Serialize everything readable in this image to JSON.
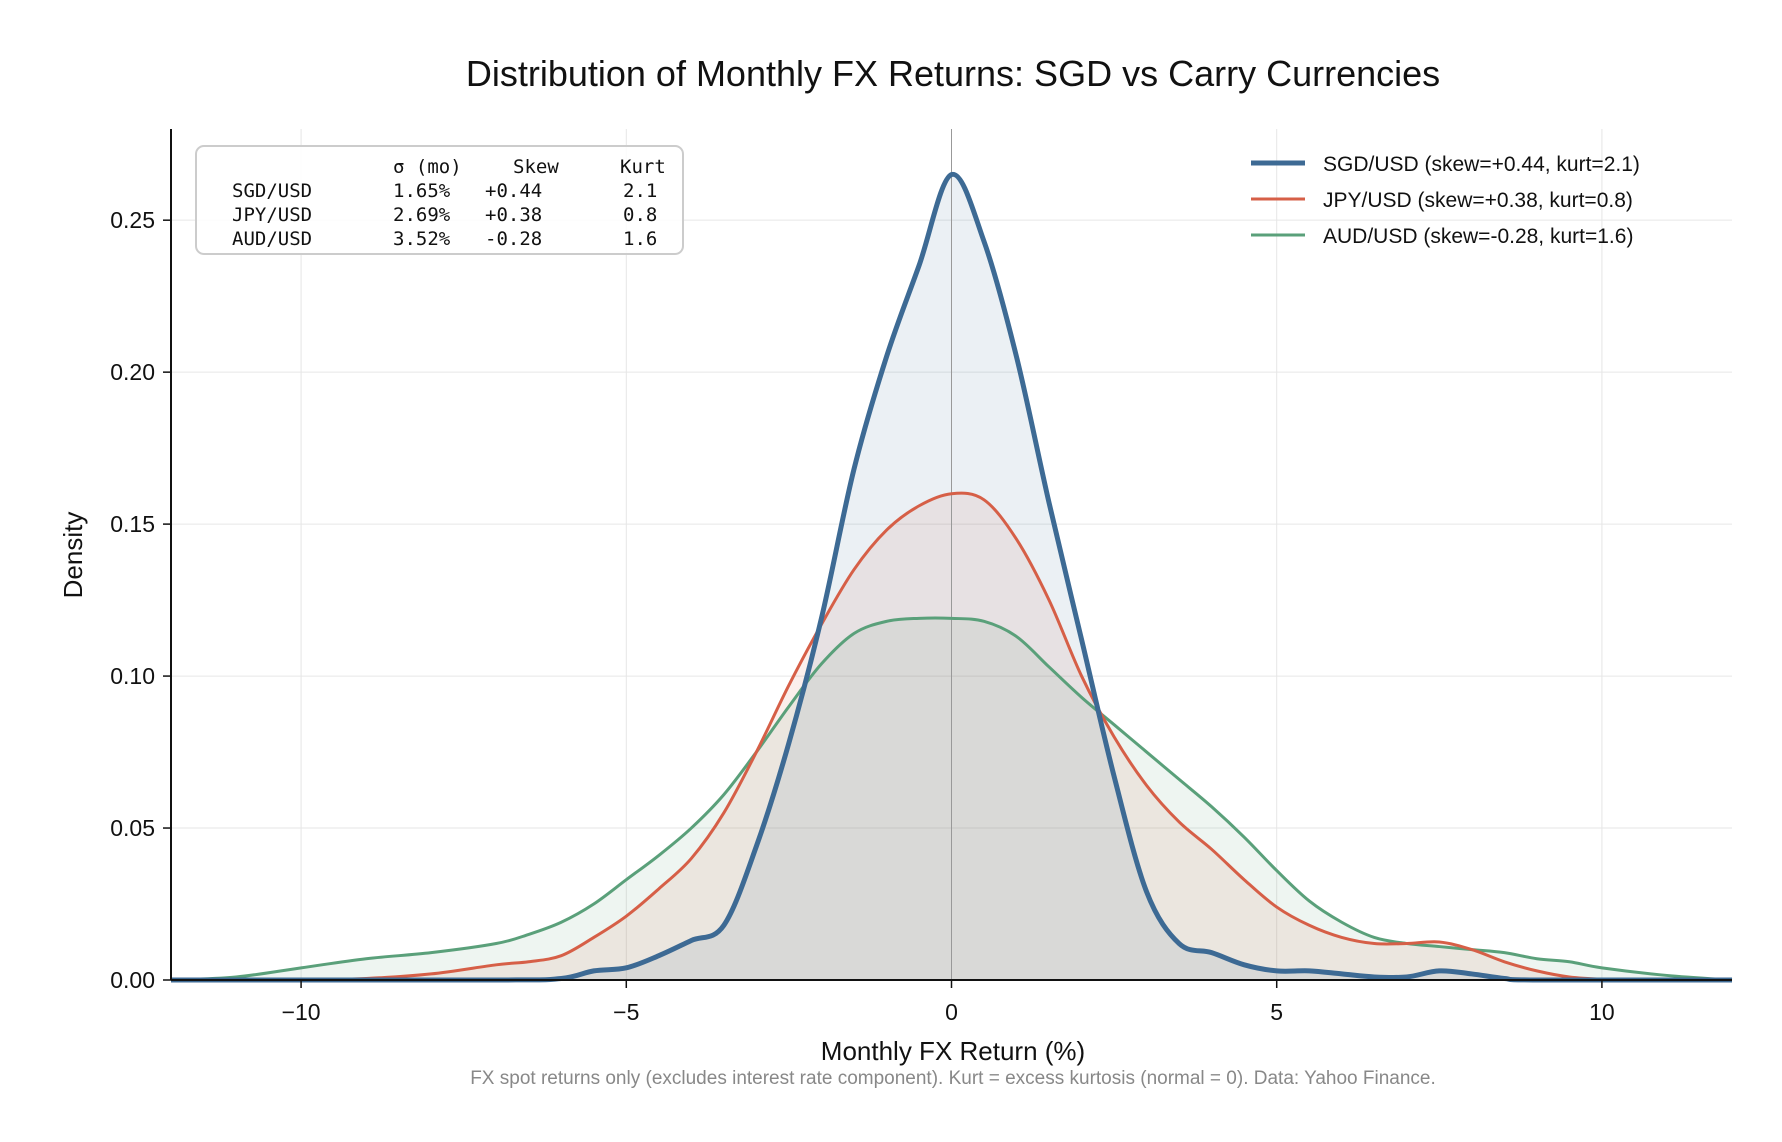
{
  "chart_data": {
    "type": "line",
    "title": "Distribution of Monthly FX Returns: SGD vs Carry Currencies",
    "xlabel": "Monthly FX Return (%)",
    "ylabel": "Density",
    "xlim": [
      -12,
      12
    ],
    "ylim": [
      0,
      0.28
    ],
    "xticks": [
      -10,
      -5,
      0,
      5,
      10
    ],
    "xtick_labels": [
      "−10",
      "−5",
      "0",
      "5",
      "10"
    ],
    "yticks": [
      0,
      0.05,
      0.1,
      0.15,
      0.2,
      0.25
    ],
    "ytick_labels": [
      "0.00",
      "0.05",
      "0.10",
      "0.15",
      "0.20",
      "0.25"
    ],
    "grid": true,
    "vertical_reference_line": 0,
    "legend_position": "top-right",
    "footnote": "FX spot returns only (excludes interest rate component). Kurt = excess kurtosis (normal = 0). Data: Yahoo Finance.",
    "stats_table": {
      "headers": [
        "",
        "σ (mo)",
        "Skew",
        "Kurt"
      ],
      "rows": [
        [
          "SGD/USD",
          "1.65%",
          "+0.44",
          "2.1"
        ],
        [
          "JPY/USD",
          "2.69%",
          "+0.38",
          "0.8"
        ],
        [
          "AUD/USD",
          "3.52%",
          "-0.28",
          "1.6"
        ]
      ]
    },
    "series": [
      {
        "name": "SGD/USD  (skew=+0.44, kurt=2.1)",
        "color": "#3d6a94",
        "fill": "#3d6a94",
        "points": [
          [
            -12,
            0
          ],
          [
            -7,
            0
          ],
          [
            -6,
            0.0005
          ],
          [
            -5.5,
            0.003
          ],
          [
            -5,
            0.004
          ],
          [
            -4.5,
            0.008
          ],
          [
            -4,
            0.013
          ],
          [
            -3.5,
            0.018
          ],
          [
            -3,
            0.044
          ],
          [
            -2.5,
            0.078
          ],
          [
            -2,
            0.119
          ],
          [
            -1.5,
            0.168
          ],
          [
            -1,
            0.205
          ],
          [
            -0.5,
            0.235
          ],
          [
            0,
            0.265
          ],
          [
            0.5,
            0.243
          ],
          [
            1,
            0.205
          ],
          [
            1.5,
            0.157
          ],
          [
            2,
            0.112
          ],
          [
            2.5,
            0.067
          ],
          [
            3,
            0.029
          ],
          [
            3.5,
            0.012
          ],
          [
            4,
            0.009
          ],
          [
            4.5,
            0.005
          ],
          [
            5,
            0.003
          ],
          [
            5.5,
            0.003
          ],
          [
            6,
            0.002
          ],
          [
            6.5,
            0.001
          ],
          [
            7,
            0.001
          ],
          [
            7.5,
            0.003
          ],
          [
            8,
            0.002
          ],
          [
            8.5,
            0.0005
          ],
          [
            9,
            0
          ],
          [
            12,
            0
          ]
        ]
      },
      {
        "name": "JPY/USD  (skew=+0.38, kurt=0.8)",
        "color": "#d65f47",
        "fill": "#d65f47",
        "points": [
          [
            -12,
            0
          ],
          [
            -10,
            0
          ],
          [
            -9,
            0.0005
          ],
          [
            -8,
            0.002
          ],
          [
            -7,
            0.005
          ],
          [
            -6.5,
            0.006
          ],
          [
            -6,
            0.008
          ],
          [
            -5.5,
            0.014
          ],
          [
            -5,
            0.021
          ],
          [
            -4.5,
            0.03
          ],
          [
            -4,
            0.04
          ],
          [
            -3.5,
            0.055
          ],
          [
            -3,
            0.075
          ],
          [
            -2.5,
            0.097
          ],
          [
            -2,
            0.117
          ],
          [
            -1.5,
            0.135
          ],
          [
            -1,
            0.148
          ],
          [
            -0.5,
            0.156
          ],
          [
            0,
            0.16
          ],
          [
            0.5,
            0.158
          ],
          [
            1,
            0.145
          ],
          [
            1.5,
            0.125
          ],
          [
            2,
            0.1
          ],
          [
            2.5,
            0.08
          ],
          [
            3,
            0.064
          ],
          [
            3.5,
            0.052
          ],
          [
            4,
            0.043
          ],
          [
            4.5,
            0.033
          ],
          [
            5,
            0.024
          ],
          [
            5.5,
            0.018
          ],
          [
            6,
            0.014
          ],
          [
            6.5,
            0.012
          ],
          [
            7,
            0.012
          ],
          [
            7.5,
            0.0125
          ],
          [
            8,
            0.01
          ],
          [
            8.5,
            0.006
          ],
          [
            9,
            0.003
          ],
          [
            9.5,
            0.001
          ],
          [
            10,
            0.0003
          ],
          [
            11,
            0
          ],
          [
            12,
            0
          ]
        ]
      },
      {
        "name": "AUD/USD  (skew=-0.28, kurt=1.6)",
        "color": "#5aa07a",
        "fill": "#5aa07a",
        "points": [
          [
            -12,
            0
          ],
          [
            -11,
            0.001
          ],
          [
            -10,
            0.004
          ],
          [
            -9,
            0.007
          ],
          [
            -8,
            0.009
          ],
          [
            -7,
            0.012
          ],
          [
            -6.5,
            0.015
          ],
          [
            -6,
            0.019
          ],
          [
            -5.5,
            0.025
          ],
          [
            -5,
            0.033
          ],
          [
            -4.5,
            0.041
          ],
          [
            -4,
            0.05
          ],
          [
            -3.5,
            0.061
          ],
          [
            -3,
            0.075
          ],
          [
            -2.5,
            0.09
          ],
          [
            -2,
            0.104
          ],
          [
            -1.5,
            0.114
          ],
          [
            -1,
            0.118
          ],
          [
            -0.5,
            0.119
          ],
          [
            0,
            0.119
          ],
          [
            0.5,
            0.118
          ],
          [
            1,
            0.113
          ],
          [
            1.5,
            0.103
          ],
          [
            2,
            0.093
          ],
          [
            2.5,
            0.084
          ],
          [
            3,
            0.075
          ],
          [
            3.5,
            0.066
          ],
          [
            4,
            0.057
          ],
          [
            4.5,
            0.047
          ],
          [
            5,
            0.036
          ],
          [
            5.5,
            0.026
          ],
          [
            6,
            0.019
          ],
          [
            6.5,
            0.014
          ],
          [
            7,
            0.012
          ],
          [
            7.5,
            0.011
          ],
          [
            8,
            0.01
          ],
          [
            8.5,
            0.009
          ],
          [
            9,
            0.007
          ],
          [
            9.5,
            0.006
          ],
          [
            10,
            0.004
          ],
          [
            11,
            0.0015
          ],
          [
            12,
            0
          ]
        ]
      }
    ]
  }
}
